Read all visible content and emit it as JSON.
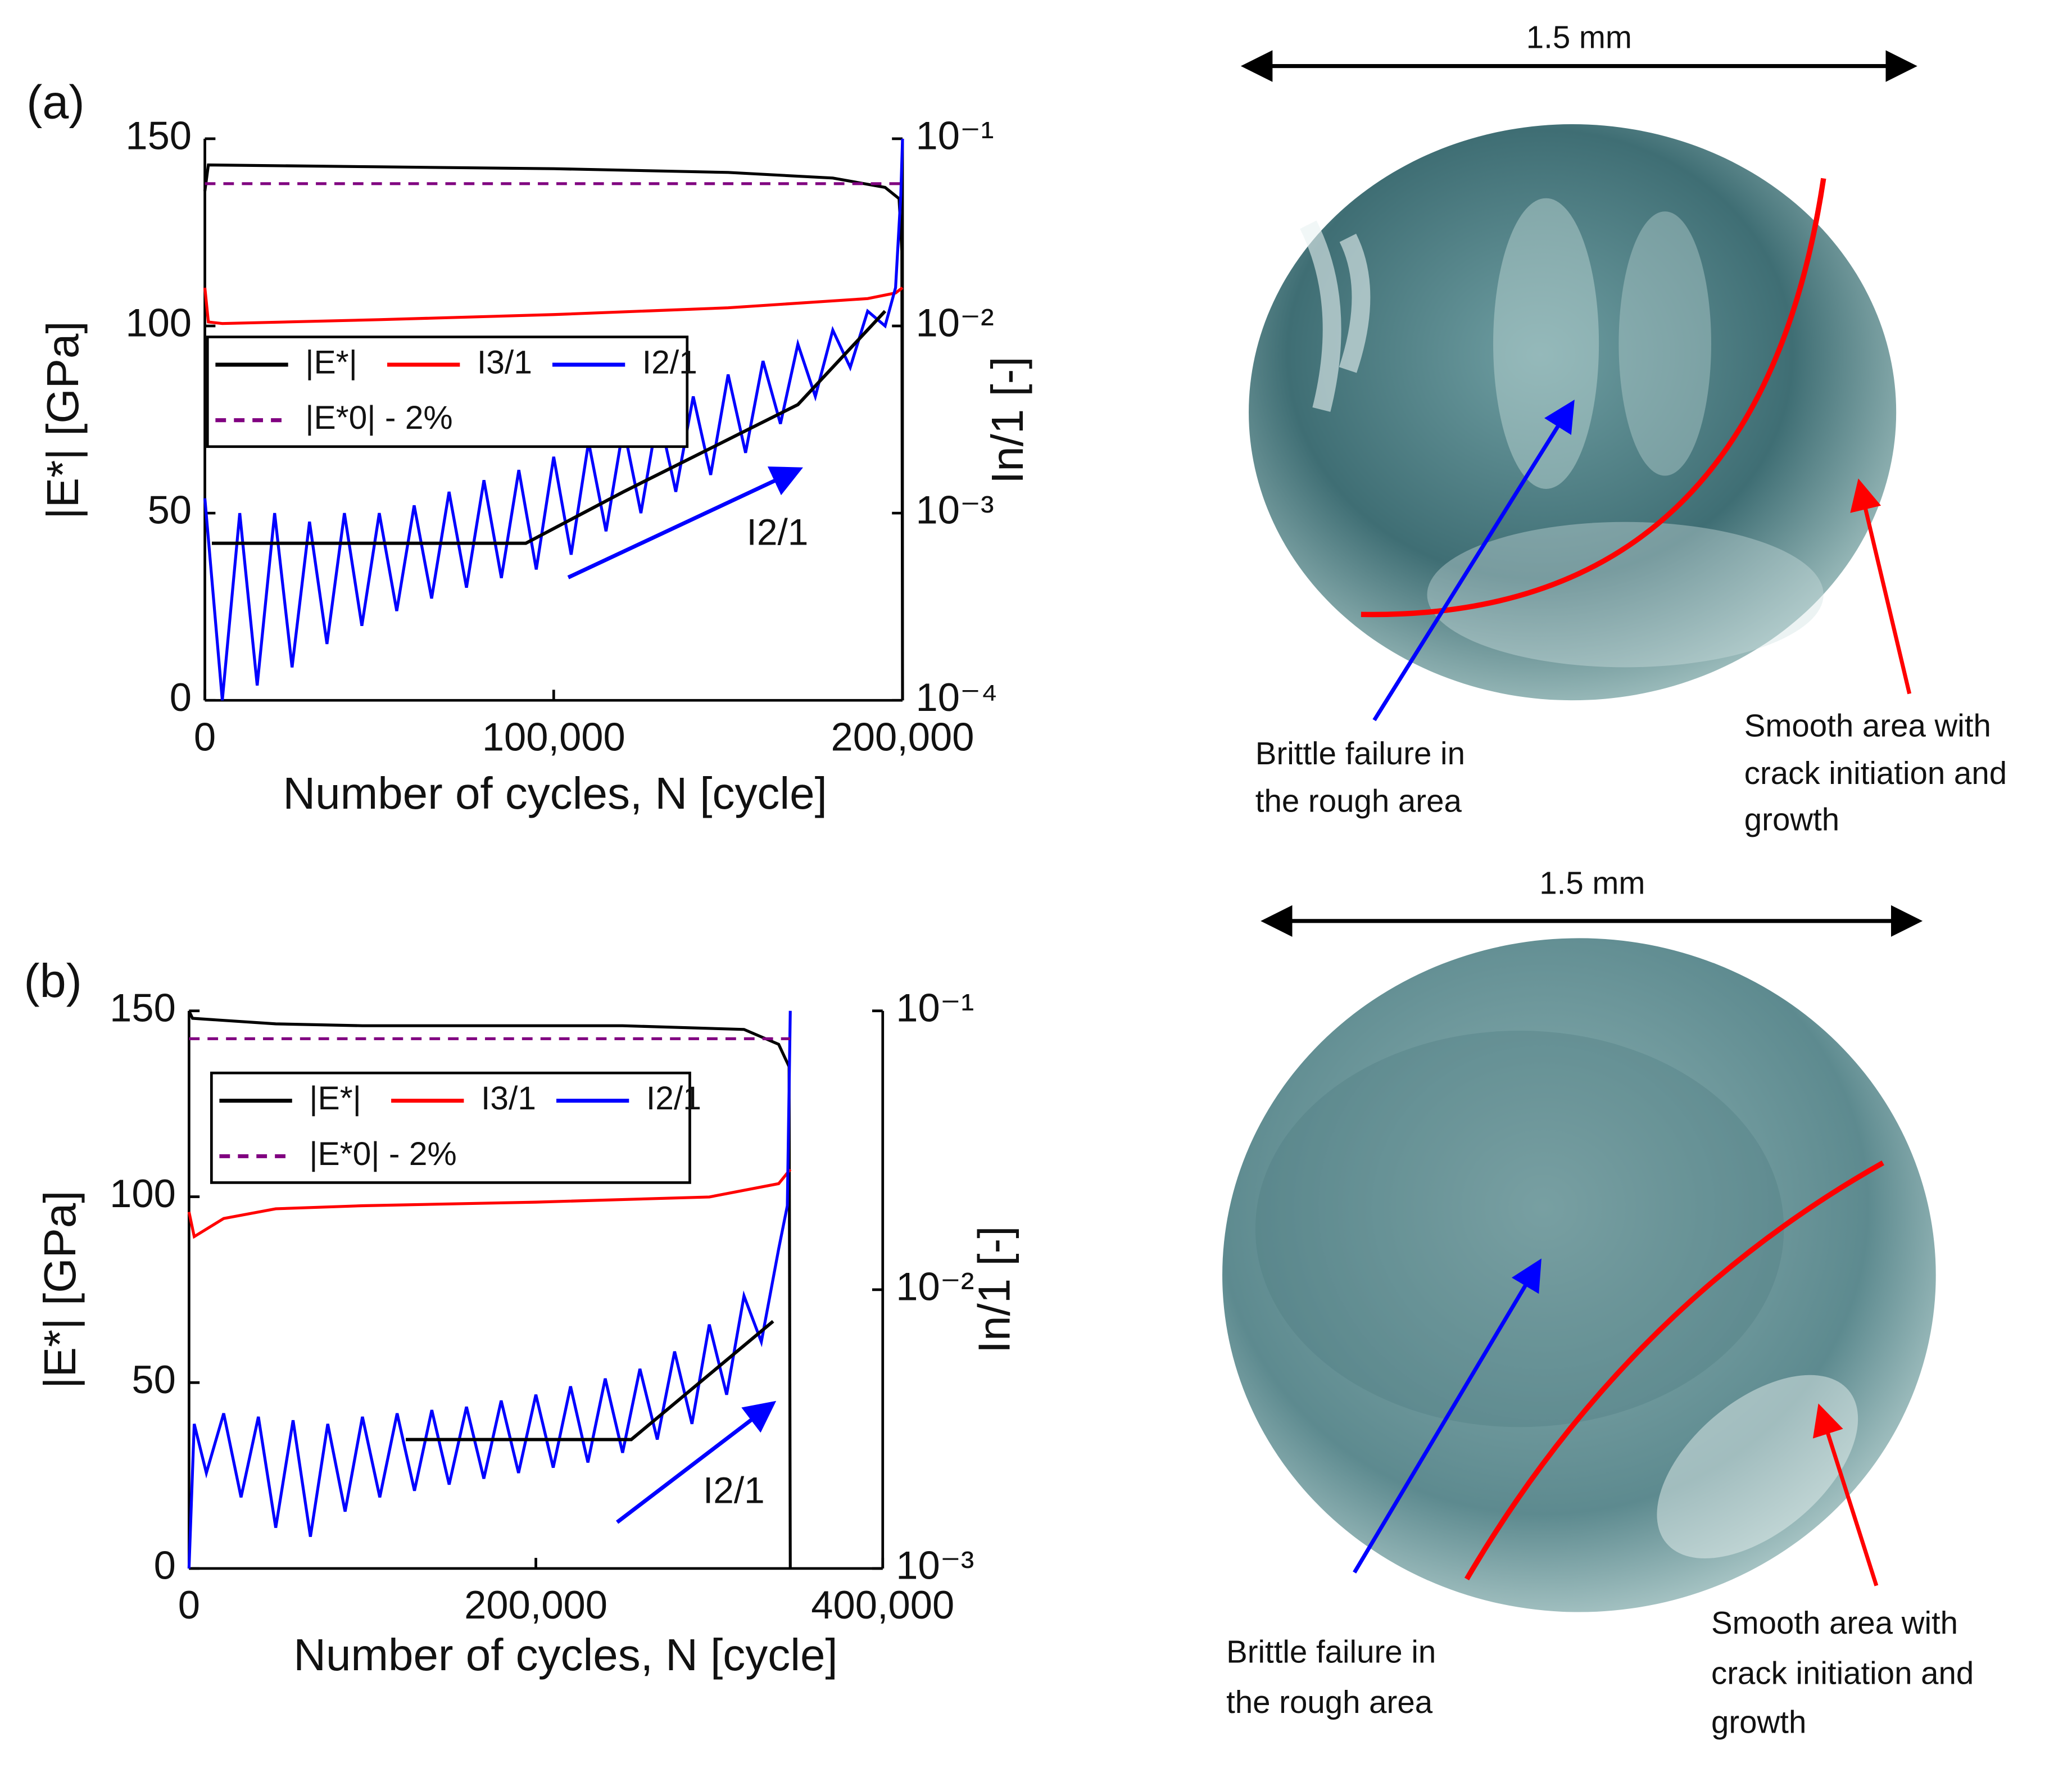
{
  "chart_data": [
    {
      "type": "line",
      "panel_label": "(a)",
      "xlabel": "Number of cycles, N [cycle]",
      "ylabel": "|E*| [GPa]",
      "y2label": "In/1 [-]",
      "annotation": "I2/1",
      "xlim": [
        0,
        200000
      ],
      "xticks": [
        0,
        {
          "value": 100000,
          "label": "100,000"
        },
        {
          "value": 200000,
          "label": "200,000"
        }
      ],
      "ylim": [
        0,
        150
      ],
      "yticks": [
        0,
        50,
        100,
        150
      ],
      "y2lim": [
        0.0001,
        0.1
      ],
      "y2scale": "log",
      "y2ticks": [
        {
          "value": 0.0001,
          "label": "10⁻⁴"
        },
        {
          "value": 0.001,
          "label": "10⁻³"
        },
        {
          "value": 0.01,
          "label": "10⁻²"
        },
        {
          "value": 0.1,
          "label": "10⁻¹"
        }
      ],
      "series": [
        {
          "name": "|E*|",
          "color": "#000000",
          "x": [
            0,
            1000,
            50000,
            100000,
            150000,
            180000,
            195000,
            199000,
            199800,
            200000
          ],
          "values": [
            136,
            143,
            142.5,
            142,
            141,
            139.5,
            137,
            134,
            120,
            0
          ]
        },
        {
          "name": "I3/1",
          "color": "#ff0000",
          "axis": "y2",
          "x": [
            0,
            1000,
            5000,
            50000,
            100000,
            150000,
            190000,
            198000,
            200000
          ],
          "values": [
            0.016,
            0.0105,
            0.0103,
            0.0108,
            0.0115,
            0.0125,
            0.014,
            0.015,
            0.016
          ]
        },
        {
          "name": "I2/1",
          "color": "#0000ff",
          "axis": "y2",
          "x": [
            0,
            5000,
            10000,
            15000,
            20000,
            25000,
            30000,
            35000,
            40000,
            45000,
            50000,
            55000,
            60000,
            65000,
            70000,
            75000,
            80000,
            85000,
            90000,
            95000,
            100000,
            105000,
            110000,
            115000,
            120000,
            125000,
            130000,
            135000,
            140000,
            145000,
            150000,
            155000,
            160000,
            165000,
            170000,
            175000,
            180000,
            185000,
            190000,
            195000,
            198000,
            199500,
            200000
          ],
          "values": [
            0.0012,
            0.0001,
            0.001,
            0.00012,
            0.001,
            0.00015,
            0.0009,
            0.0002,
            0.001,
            0.00025,
            0.001,
            0.0003,
            0.0011,
            0.00035,
            0.0013,
            0.0004,
            0.0015,
            0.00045,
            0.0017,
            0.0005,
            0.002,
            0.0006,
            0.0024,
            0.0008,
            0.0029,
            0.001,
            0.0035,
            0.0013,
            0.0042,
            0.0016,
            0.0055,
            0.0021,
            0.0065,
            0.003,
            0.008,
            0.0042,
            0.0095,
            0.006,
            0.012,
            0.01,
            0.016,
            0.05,
            0.1
          ]
        },
        {
          "name": "|E*0| - 2%",
          "color": "#800080",
          "dash": true,
          "x": [
            0,
            200000
          ],
          "values": [
            138,
            138
          ]
        },
        {
          "color": "#000000",
          "axis": "y2",
          "x": [
            2000,
            92000,
            120000,
            170000,
            195000
          ],
          "values": [
            0.00069,
            0.00069,
            0.0013,
            0.0038,
            0.012
          ]
        }
      ]
    },
    {
      "type": "line",
      "panel_label": "(b)",
      "xlabel": "Number of cycles, N [cycle]",
      "ylabel": "|E*| [GPa]",
      "y2label": "In/1 [-]",
      "annotation": "I2/1",
      "xlim": [
        0,
        400000
      ],
      "xticks": [
        0,
        {
          "value": 200000,
          "label": "200,000"
        },
        {
          "value": 400000,
          "label": "400,000"
        }
      ],
      "ylim": [
        0,
        150
      ],
      "yticks": [
        0,
        50,
        100,
        150
      ],
      "y2lim": [
        0.001,
        0.1
      ],
      "y2scale": "log",
      "y2ticks": [
        {
          "value": 0.001,
          "label": "10⁻³"
        },
        {
          "value": 0.01,
          "label": "10⁻²"
        },
        {
          "value": 0.1,
          "label": "10⁻¹"
        }
      ],
      "series": [
        {
          "name": "|E*|",
          "color": "#000000",
          "x": [
            0,
            2000,
            50000,
            100000,
            250000,
            320000,
            340000,
            346000,
            346700
          ],
          "values": [
            150,
            148,
            146.5,
            146,
            146,
            145,
            141,
            135,
            0
          ]
        },
        {
          "name": "I3/1",
          "color": "#ff0000",
          "axis": "y2",
          "x": [
            0,
            3000,
            20000,
            50000,
            100000,
            200000,
            300000,
            340000,
            346700
          ],
          "values": [
            0.019,
            0.0155,
            0.018,
            0.0195,
            0.02,
            0.0206,
            0.0215,
            0.024,
            0.027
          ]
        },
        {
          "name": "I2/1",
          "color": "#0000ff",
          "axis": "y2",
          "x": [
            0,
            3000,
            10000,
            20000,
            30000,
            40000,
            50000,
            60000,
            70000,
            80000,
            90000,
            100000,
            110000,
            120000,
            130000,
            140000,
            150000,
            160000,
            170000,
            180000,
            190000,
            200000,
            210000,
            220000,
            230000,
            240000,
            250000,
            260000,
            270000,
            280000,
            290000,
            300000,
            310000,
            320000,
            330000,
            340000,
            345000,
            346700
          ],
          "values": [
            0.001,
            0.0033,
            0.0022,
            0.0036,
            0.0018,
            0.0035,
            0.0014,
            0.0034,
            0.0013,
            0.0033,
            0.0016,
            0.0035,
            0.0018,
            0.0036,
            0.0019,
            0.0037,
            0.002,
            0.0038,
            0.0021,
            0.004,
            0.0022,
            0.0042,
            0.0023,
            0.0045,
            0.0024,
            0.0048,
            0.0026,
            0.0052,
            0.0029,
            0.006,
            0.0033,
            0.0075,
            0.0042,
            0.0095,
            0.0065,
            0.014,
            0.02,
            0.1
          ]
        },
        {
          "name": "|E*0| - 2%",
          "color": "#800080",
          "dash": true,
          "x": [
            0,
            346700
          ],
          "values": [
            142.5,
            142.5
          ]
        },
        {
          "color": "#000000",
          "axis": "y2",
          "x": [
            125000,
            255000,
            336800
          ],
          "values": [
            0.0029,
            0.0029,
            0.0077
          ]
        }
      ]
    }
  ],
  "images": [
    {
      "scale_label": "1.5 mm",
      "left_note": [
        "Brittle failure in",
        "the rough area"
      ],
      "right_note": [
        "Smooth area with",
        "crack initiation and",
        "growth"
      ]
    },
    {
      "scale_label": "1.5 mm",
      "left_note": [
        "Brittle failure in",
        "the rough area"
      ],
      "right_note": [
        "Smooth area with",
        "crack initiation and",
        "growth"
      ]
    }
  ]
}
